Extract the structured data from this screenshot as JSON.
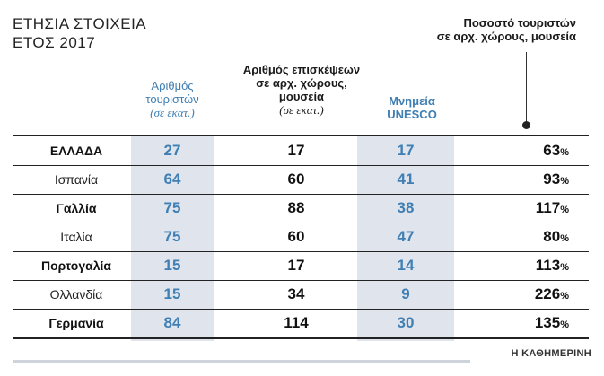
{
  "title": {
    "line1": "ΕΤΗΣΙΑ ΣΤΟΙΧΕΙΑ",
    "line2": "ΕΤΟΣ 2017"
  },
  "columns": [
    {
      "line1": "Αριθμός",
      "line2": "τουριστών",
      "line3": "(σε εκατ.)"
    },
    {
      "line1": "Αριθμός επισκέψεων",
      "line2": "σε αρχ. χώρους,",
      "line3": "μουσεία",
      "line4": "(σε εκατ.)"
    },
    {
      "line1": "Μνημεία",
      "line2": "UNESCO"
    },
    {
      "line1": "Ποσοστό τουριστών",
      "line2": "σε αρχ. χώρους, μουσεία"
    }
  ],
  "chart_data": {
    "type": "table",
    "title": "ΕΤΗΣΙΑ ΣΤΟΙΧΕΙΑ ΕΤΟΣ 2017",
    "headers": [
      "",
      "Αριθμός τουριστών (σε εκατ.)",
      "Αριθμός επισκέψεων σε αρχ. χώρους, μουσεία (σε εκατ.)",
      "Μνημεία UNESCO",
      "Ποσοστό τουριστών σε αρχ. χώρους, μουσεία"
    ],
    "rows": [
      {
        "country": "ΕΛΛΑΔΑ",
        "tourists": "27",
        "visits": "17",
        "unesco": "17",
        "pct": "63",
        "bold": true
      },
      {
        "country": "Ισπανία",
        "tourists": "64",
        "visits": "60",
        "unesco": "41",
        "pct": "93",
        "bold": false
      },
      {
        "country": "Γαλλία",
        "tourists": "75",
        "visits": "88",
        "unesco": "38",
        "pct": "117",
        "bold": true
      },
      {
        "country": "Ιταλία",
        "tourists": "75",
        "visits": "60",
        "unesco": "47",
        "pct": "80",
        "bold": false
      },
      {
        "country": "Πορτογαλία",
        "tourists": "15",
        "visits": "17",
        "unesco": "14",
        "pct": "113",
        "bold": true
      },
      {
        "country": "Ολλανδία",
        "tourists": "15",
        "visits": "34",
        "unesco": "9",
        "pct": "226",
        "bold": false
      },
      {
        "country": "Γερμανία",
        "tourists": "84",
        "visits": "114",
        "unesco": "30",
        "pct": "135",
        "bold": true
      }
    ],
    "pct_unit": "%"
  },
  "source": "Η ΚΑΘΗΜΕΡΙΝΗ",
  "colors": {
    "accent": "#3f7fb3",
    "shade": "#dfe4ed"
  }
}
